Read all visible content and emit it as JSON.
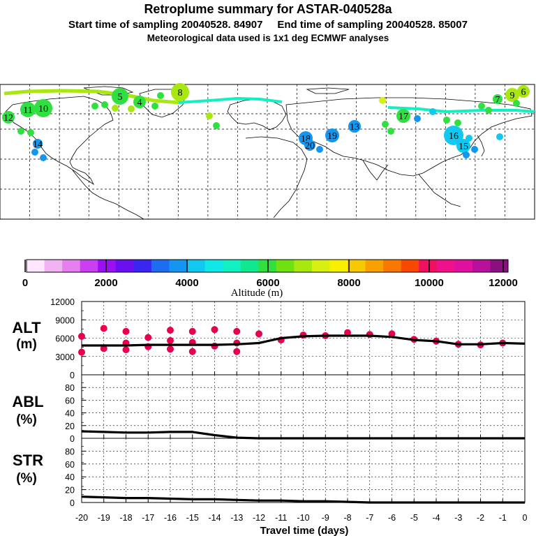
{
  "header": {
    "title": "Retroplume summary for ASTAR-040528a",
    "sampling": "Start time of sampling 20040528. 84907     End time of sampling 20040528. 85007",
    "met": "Meteorological data used is 1x1 deg ECMWF analyses"
  },
  "colors": {
    "accent": "#e8004f",
    "altitude_scale": [
      "#ffe6ff",
      "#f2b3f2",
      "#e680f0",
      "#cc3ff0",
      "#9a10f0",
      "#6a10f0",
      "#3a26f0",
      "#1e6cf0",
      "#1496f0",
      "#10c8f0",
      "#10e8e8",
      "#10f0c0",
      "#10e890",
      "#30e040",
      "#70e010",
      "#a8e810",
      "#d8f010",
      "#f8f000",
      "#f8c800",
      "#f8a000",
      "#f87800",
      "#f84800",
      "#f01060",
      "#f0108c",
      "#e0109e",
      "#b8109a",
      "#8a1080"
    ]
  },
  "map": {
    "trajectory_labels": [
      {
        "text": "8",
        "color": "#a8e810"
      },
      {
        "text": "9",
        "color": "#a8e810"
      },
      {
        "text": "6",
        "color": "#a8e810"
      },
      {
        "text": "7",
        "color": "#30e040"
      },
      {
        "text": "5",
        "color": "#30e040"
      },
      {
        "text": "4",
        "color": "#30e040"
      },
      {
        "text": "11",
        "color": "#30e040"
      },
      {
        "text": "10",
        "color": "#30e040"
      },
      {
        "text": "12",
        "color": "#30e040"
      },
      {
        "text": "17",
        "color": "#30e040"
      },
      {
        "text": "13",
        "color": "#1496f0"
      },
      {
        "text": "14",
        "color": "#1496f0"
      },
      {
        "text": "18",
        "color": "#1496f0"
      },
      {
        "text": "19",
        "color": "#1496f0"
      },
      {
        "text": "20",
        "color": "#1496f0"
      },
      {
        "text": "16",
        "color": "#10c8f0"
      },
      {
        "text": "15",
        "color": "#10c8f0"
      }
    ]
  },
  "colorbar": {
    "tick_labels": [
      "0",
      "2000",
      "4000",
      "6000",
      "8000",
      "10000",
      "12000"
    ],
    "title": "Altitude (m)"
  },
  "panels": {
    "alt": {
      "label_line1": "ALT",
      "label_line2": "(m)"
    },
    "abl": {
      "label_line1": "ABL",
      "label_line2": "(%)"
    },
    "str": {
      "label_line1": "STR",
      "label_line2": "(%)"
    }
  },
  "chart_data": [
    {
      "type": "line",
      "title": "ALT (m)",
      "xlabel": "Travel time (days)",
      "ylabel": "ALT (m)",
      "xlim": [
        -20,
        0
      ],
      "ylim": [
        0,
        12000
      ],
      "yticks": [
        "0",
        "3000",
        "6000",
        "9000",
        "12000"
      ],
      "x": [
        -20,
        -19,
        -18,
        -17,
        -16,
        -15,
        -14,
        -13,
        -12,
        -11,
        -10,
        -9,
        -8,
        -7,
        -6,
        -5,
        -4,
        -3,
        -2,
        -1,
        0
      ],
      "series": [
        {
          "name": "mean altitude",
          "values": [
            4800,
            4800,
            4800,
            4900,
            4900,
            4900,
            4900,
            5000,
            5200,
            6000,
            6300,
            6400,
            6400,
            6400,
            6200,
            5700,
            5500,
            5000,
            5000,
            5200,
            5100
          ]
        }
      ],
      "clusters": [
        {
          "x": -20,
          "y": 6300
        },
        {
          "x": -20,
          "y": 3700
        },
        {
          "x": -19,
          "y": 7600
        },
        {
          "x": -19,
          "y": 4300
        },
        {
          "x": -18,
          "y": 7100
        },
        {
          "x": -18,
          "y": 5200
        },
        {
          "x": -18,
          "y": 4100
        },
        {
          "x": -17,
          "y": 6100
        },
        {
          "x": -17,
          "y": 4600
        },
        {
          "x": -16,
          "y": 7300
        },
        {
          "x": -16,
          "y": 5600
        },
        {
          "x": -16,
          "y": 4200
        },
        {
          "x": -15,
          "y": 7100
        },
        {
          "x": -15,
          "y": 5300
        },
        {
          "x": -15,
          "y": 3800
        },
        {
          "x": -14,
          "y": 7400
        },
        {
          "x": -14,
          "y": 4700
        },
        {
          "x": -13,
          "y": 7100
        },
        {
          "x": -13,
          "y": 5200
        },
        {
          "x": -13,
          "y": 3800
        },
        {
          "x": -12,
          "y": 6700
        },
        {
          "x": -11,
          "y": 5700
        },
        {
          "x": -10,
          "y": 6500
        },
        {
          "x": -9,
          "y": 6400
        },
        {
          "x": -8,
          "y": 6900
        },
        {
          "x": -7,
          "y": 6600
        },
        {
          "x": -6,
          "y": 6700
        },
        {
          "x": -5,
          "y": 5800
        },
        {
          "x": -4,
          "y": 5500
        },
        {
          "x": -3,
          "y": 5000
        },
        {
          "x": -2,
          "y": 4900
        },
        {
          "x": -1,
          "y": 5200
        }
      ]
    },
    {
      "type": "line",
      "title": "ABL (%)",
      "xlabel": "Travel time (days)",
      "ylabel": "ABL (%)",
      "xlim": [
        -20,
        0
      ],
      "ylim": [
        0,
        100
      ],
      "yticks": [
        "0",
        "20",
        "40",
        "60",
        "80"
      ],
      "x": [
        -20,
        -19,
        -18,
        -17,
        -16,
        -15,
        -14,
        -13,
        -12,
        -11,
        -10,
        -9,
        -8,
        -7,
        -6,
        -5,
        -4,
        -3,
        -2,
        -1,
        0
      ],
      "series": [
        {
          "name": "ABL fraction",
          "values": [
            11,
            10,
            9,
            9,
            10,
            10,
            5,
            1,
            0,
            0,
            0,
            0,
            0,
            0,
            0,
            0,
            0,
            0,
            0,
            0,
            0
          ]
        }
      ]
    },
    {
      "type": "line",
      "title": "STR (%)",
      "xlabel": "Travel time (days)",
      "ylabel": "STR (%)",
      "xlim": [
        -20,
        0
      ],
      "ylim": [
        0,
        100
      ],
      "yticks": [
        "0",
        "20",
        "40",
        "60",
        "80"
      ],
      "x": [
        -20,
        -19,
        -18,
        -17,
        -16,
        -15,
        -14,
        -13,
        -12,
        -11,
        -10,
        -9,
        -8,
        -7,
        -6,
        -5,
        -4,
        -3,
        -2,
        -1,
        0
      ],
      "series": [
        {
          "name": "STR fraction",
          "values": [
            9,
            8,
            7,
            7,
            6,
            5,
            5,
            4,
            3,
            3,
            2,
            2,
            1,
            0,
            0,
            0,
            0,
            0,
            0,
            0,
            0
          ]
        }
      ],
      "xticks": [
        "-20",
        "-19",
        "-18",
        "-17",
        "-16",
        "-15",
        "-14",
        "-13",
        "-12",
        "-11",
        "-10",
        "-9",
        "-8",
        "-7",
        "-6",
        "-5",
        "-4",
        "-3",
        "-2",
        "-1",
        "0"
      ]
    }
  ]
}
